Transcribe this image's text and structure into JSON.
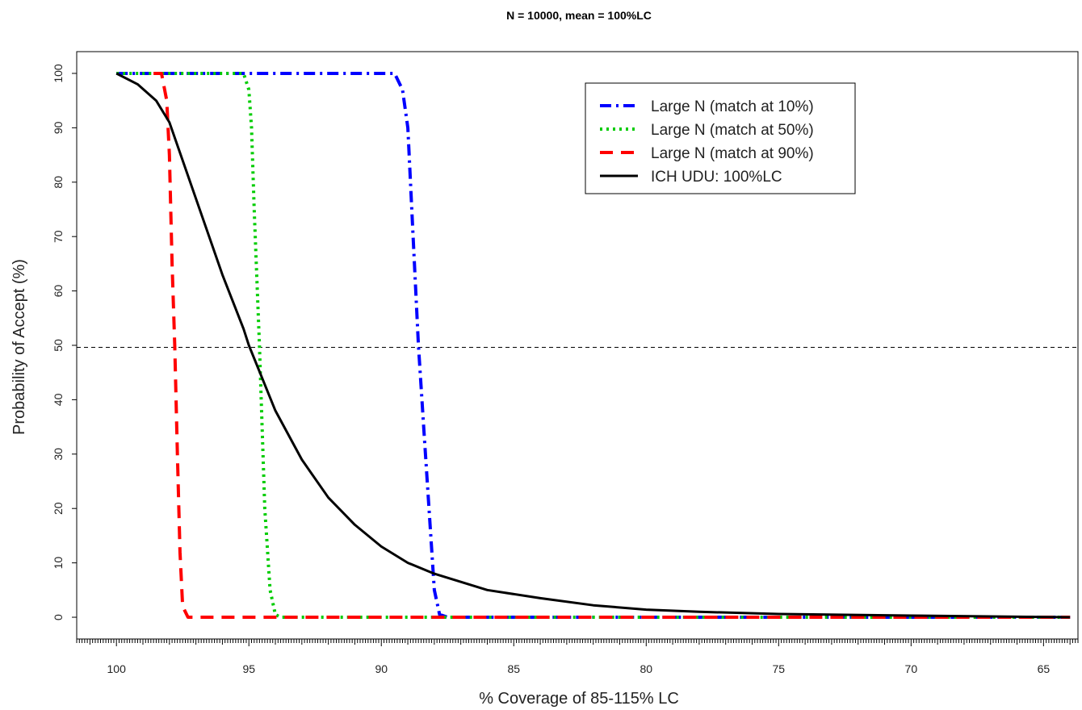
{
  "chart_data": {
    "type": "line",
    "title": "N = 10000, mean = 100%LC",
    "xlabel": "% Coverage of 85-115% LC",
    "ylabel": "Probability of Accept (%)",
    "xlim": [
      101.5,
      63.7
    ],
    "ylim": [
      -4,
      104
    ],
    "x_reversed": true,
    "x_ticks": [
      100,
      95,
      90,
      85,
      80,
      75,
      70,
      65
    ],
    "y_ticks": [
      0,
      10,
      20,
      30,
      40,
      50,
      60,
      70,
      80,
      90,
      100
    ],
    "reference_line": {
      "y": 50,
      "style": "dashed",
      "color": "#000000"
    },
    "legend_position": "top-right-center",
    "series": [
      {
        "name": "Large N (match at 10%)",
        "color": "#0000ff",
        "style": "dashdot",
        "x": [
          100,
          89.5,
          89.2,
          89.0,
          88.8,
          88.6,
          88.4,
          88.2,
          88.0,
          87.8,
          87.5,
          64
        ],
        "y": [
          100,
          100,
          97,
          90,
          70,
          50,
          35,
          20,
          5,
          0.5,
          0,
          0
        ]
      },
      {
        "name": "Large N (match at 50%)",
        "color": "#00cc00",
        "style": "dotted",
        "x": [
          100,
          95.2,
          95.0,
          94.9,
          94.8,
          94.6,
          94.4,
          94.2,
          94.0,
          93.8,
          64
        ],
        "y": [
          100,
          100,
          97,
          90,
          75,
          50,
          20,
          5,
          0.5,
          0,
          0
        ]
      },
      {
        "name": "Large N (match at 90%)",
        "color": "#ff0000",
        "style": "dashed",
        "x": [
          98.6,
          98.3,
          98.1,
          98.0,
          97.9,
          97.8,
          97.7,
          97.6,
          97.5,
          97.3,
          64
        ],
        "y": [
          100,
          100,
          95,
          85,
          65,
          50,
          30,
          12,
          2,
          0,
          0
        ]
      },
      {
        "name": "ICH UDU: 100%LC",
        "color": "#000000",
        "style": "solid",
        "x": [
          100,
          99.2,
          98.5,
          98.0,
          97.0,
          96.0,
          95.2,
          95.0,
          94.5,
          94.0,
          93.0,
          92.0,
          91.0,
          90.0,
          89.0,
          88.0,
          87.0,
          86.0,
          84.0,
          82.0,
          80.0,
          78.0,
          75.0,
          70.0,
          64.0
        ],
        "y": [
          100,
          98,
          95,
          91,
          77,
          63,
          53,
          50,
          44,
          38,
          29,
          22,
          17,
          13,
          10,
          8,
          6.5,
          5,
          3.5,
          2.2,
          1.4,
          1.0,
          0.6,
          0.3,
          0
        ]
      }
    ]
  }
}
